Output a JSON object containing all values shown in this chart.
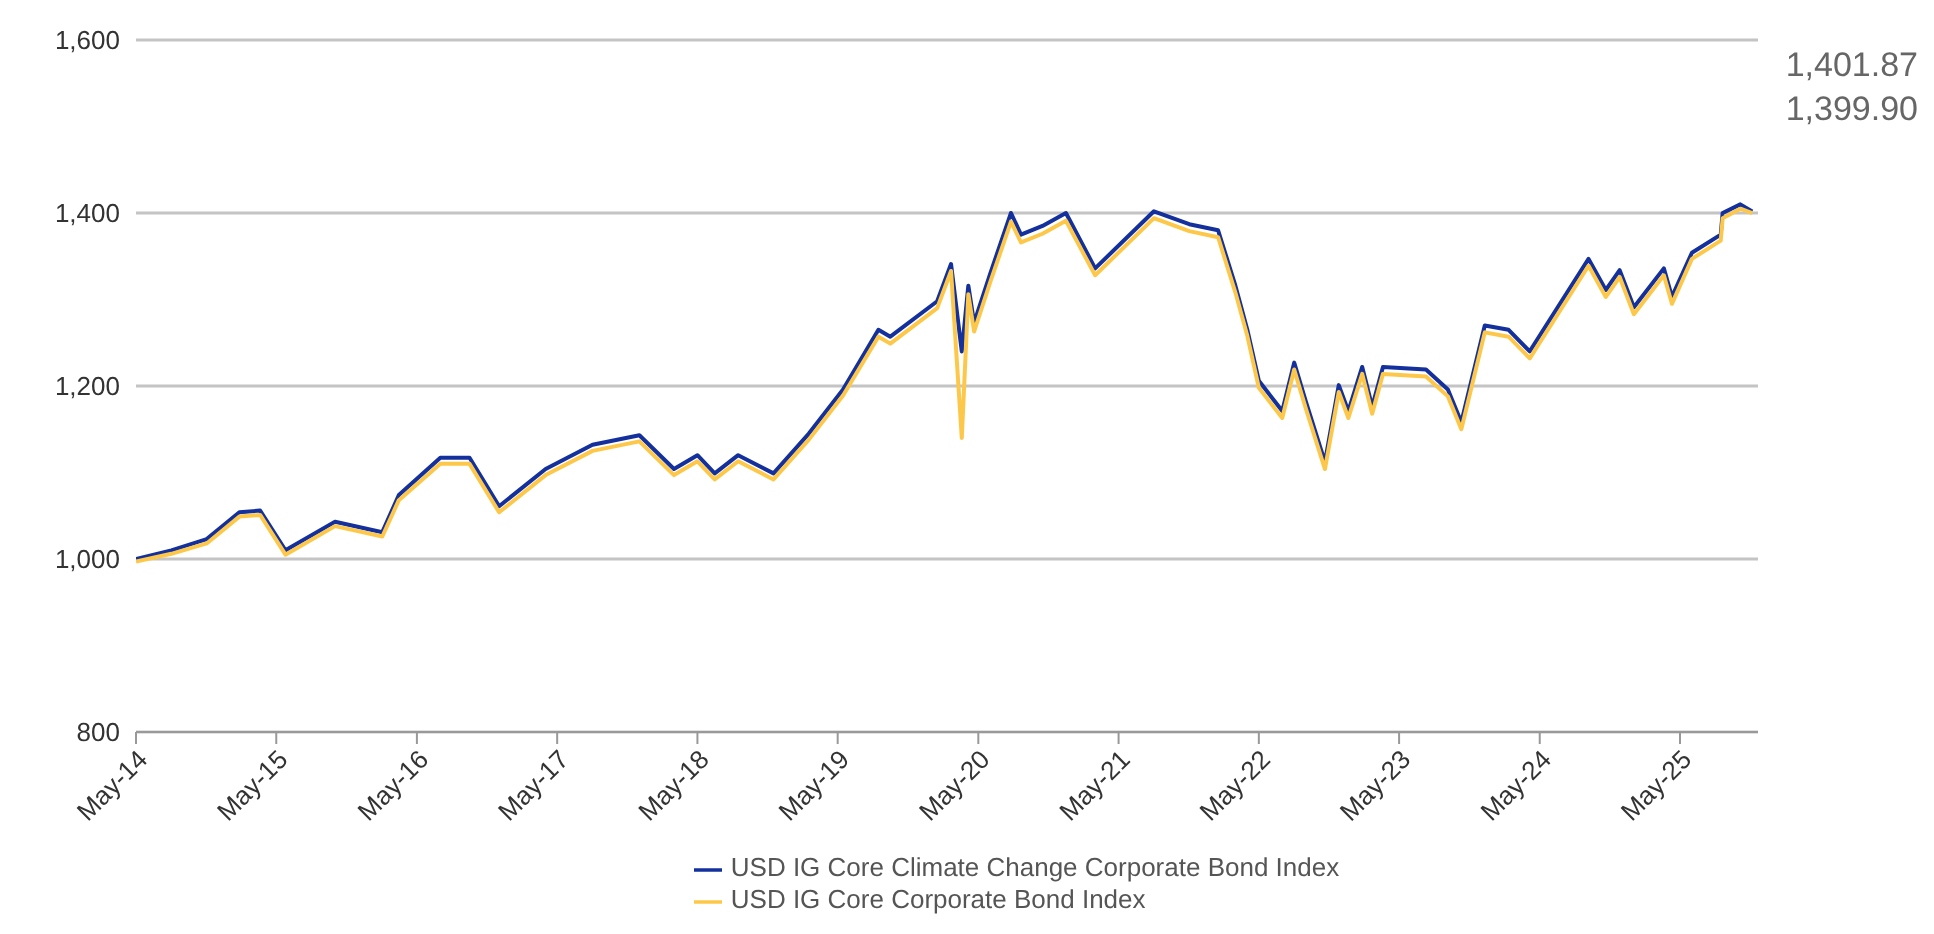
{
  "chart_data": {
    "type": "line",
    "x": [
      "2014-05-01",
      "2014-08-01",
      "2014-11-01",
      "2015-01-25",
      "2015-03-20",
      "2015-05-25",
      "2015-10-01",
      "2016-02-01",
      "2016-03-15",
      "2016-07-01",
      "2016-09-15",
      "2016-12-01",
      "2017-04-01",
      "2017-08-01",
      "2017-12-01",
      "2018-03-01",
      "2018-05-01",
      "2018-06-15",
      "2018-08-15",
      "2018-11-15",
      "2019-02-15",
      "2019-05-15",
      "2019-08-15",
      "2019-09-15",
      "2020-01-15",
      "2020-02-20",
      "2020-03-19",
      "2020-04-05",
      "2020-04-20",
      "2020-06-01",
      "2020-07-25",
      "2020-08-20",
      "2020-10-15",
      "2020-12-15",
      "2021-03-01",
      "2021-08-01",
      "2021-11-01",
      "2022-01-15",
      "2022-03-01",
      "2022-04-01",
      "2022-05-01",
      "2022-07-01",
      "2022-08-01",
      "2022-09-01",
      "2022-10-20",
      "2022-11-25",
      "2022-12-20",
      "2023-01-25",
      "2023-02-20",
      "2023-03-20",
      "2023-07-10",
      "2023-09-05",
      "2023-10-10",
      "2023-12-10",
      "2024-02-10",
      "2024-04-05",
      "2024-09-05",
      "2024-10-20",
      "2024-11-25",
      "2025-01-01",
      "2025-03-20",
      "2025-04-10",
      "2025-06-01",
      "2025-08-15",
      "2025-08-20",
      "2025-10-05",
      "2025-11-05"
    ],
    "series": [
      {
        "name": "USD IG Core Climate Change Corporate Bond Index",
        "color": "#13309c",
        "values": [
          1000,
          1010,
          1023,
          1054,
          1056,
          1010,
          1043,
          1031,
          1074,
          1117,
          1117,
          1061,
          1104,
          1132,
          1143,
          1104,
          1120,
          1099,
          1120,
          1099,
          1145,
          1196,
          1265,
          1257,
          1298,
          1341,
          1240,
          1316,
          1273,
          1330,
          1400,
          1375,
          1385,
          1400,
          1336,
          1402,
          1387,
          1380,
          1316,
          1265,
          1206,
          1171,
          1227,
          1181,
          1112,
          1201,
          1171,
          1222,
          1176,
          1222,
          1219,
          1196,
          1158,
          1270,
          1265,
          1240,
          1347,
          1311,
          1334,
          1291,
          1336,
          1303,
          1354,
          1375,
          1400,
          1410,
          1401.87
        ]
      },
      {
        "name": "USD IG Core Corporate Bond Index",
        "color": "#fdc84a",
        "values": [
          997,
          1006,
          1018,
          1049,
          1051,
          1005,
          1038,
          1026,
          1068,
          1110,
          1110,
          1054,
          1097,
          1125,
          1136,
          1097,
          1113,
          1092,
          1113,
          1092,
          1138,
          1189,
          1257,
          1249,
          1290,
          1333,
          1140,
          1306,
          1263,
          1320,
          1390,
          1366,
          1376,
          1391,
          1328,
          1394,
          1379,
          1372,
          1308,
          1258,
          1198,
          1163,
          1219,
          1173,
          1104,
          1193,
          1163,
          1214,
          1168,
          1214,
          1211,
          1188,
          1150,
          1262,
          1257,
          1232,
          1339,
          1303,
          1326,
          1283,
          1328,
          1295,
          1347,
          1368,
          1394,
          1405,
          1399.9
        ]
      }
    ],
    "xlim": [
      "2014-05-01",
      "2025-11-20"
    ],
    "xticks": [
      {
        "value": "2014-05",
        "label": "May-14"
      },
      {
        "value": "2015-05",
        "label": "May-15"
      },
      {
        "value": "2016-05",
        "label": "May-16"
      },
      {
        "value": "2017-05",
        "label": "May-17"
      },
      {
        "value": "2018-05",
        "label": "May-18"
      },
      {
        "value": "2019-05",
        "label": "May-19"
      },
      {
        "value": "2020-05",
        "label": "May-20"
      },
      {
        "value": "2021-05",
        "label": "May-21"
      },
      {
        "value": "2022-05",
        "label": "May-22"
      },
      {
        "value": "2023-05",
        "label": "May-23"
      },
      {
        "value": "2024-05",
        "label": "May-24"
      },
      {
        "value": "2025-05",
        "label": "May-25"
      }
    ],
    "ylim": [
      800,
      1600
    ],
    "yticks": [
      800,
      {
        "value": 1000,
        "label": "1,000"
      },
      {
        "value": 1200,
        "label": "1,200"
      },
      {
        "value": 1400,
        "label": "1,400"
      },
      {
        "value": 1600,
        "label": "1,600"
      }
    ],
    "annotations": [
      "1,401.87",
      "1,399.90"
    ],
    "grid": "y",
    "legend": "bottom",
    "marker": "none",
    "line_style": "solid"
  }
}
